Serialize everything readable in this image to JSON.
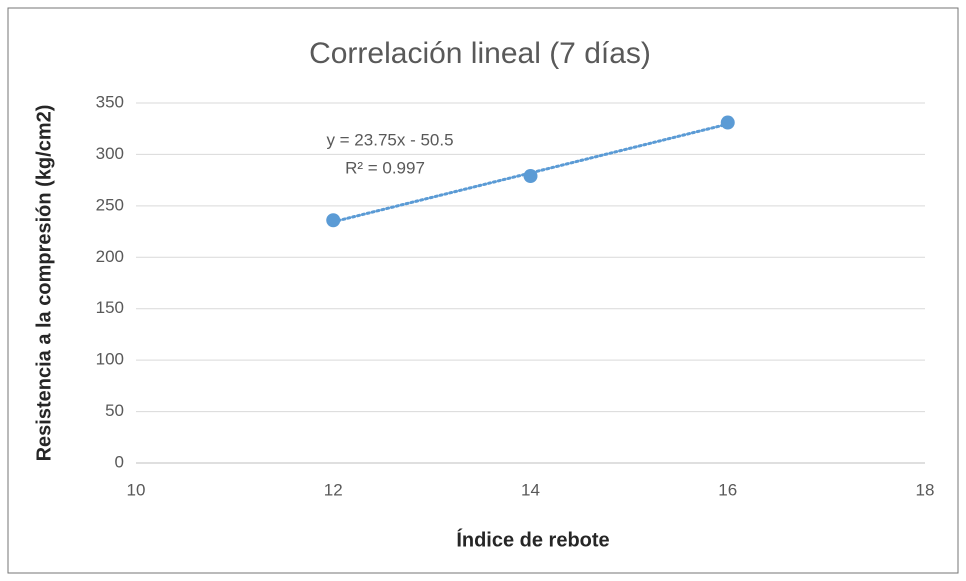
{
  "chart_data": {
    "type": "scatter",
    "title": "Correlación lineal (7 días)",
    "xlabel": "Índice de rebote",
    "ylabel": "Resistencia a la compresión (kg/cm2)",
    "annotations": [
      "y = 23.75x - 50.5",
      "R² = 0.997"
    ],
    "series": [
      {
        "name": "Resistencia",
        "color": "#5b9bd5",
        "x": [
          12,
          14,
          16
        ],
        "values": [
          236,
          279,
          331
        ]
      }
    ],
    "trendline": "linear",
    "xlim": [
      10,
      18
    ],
    "xticks": [
      10,
      12,
      14,
      16,
      18
    ],
    "ylim": [
      0,
      350
    ],
    "yticks": [
      0,
      50,
      100,
      150,
      200,
      250,
      300,
      350
    ],
    "grid": true
  }
}
